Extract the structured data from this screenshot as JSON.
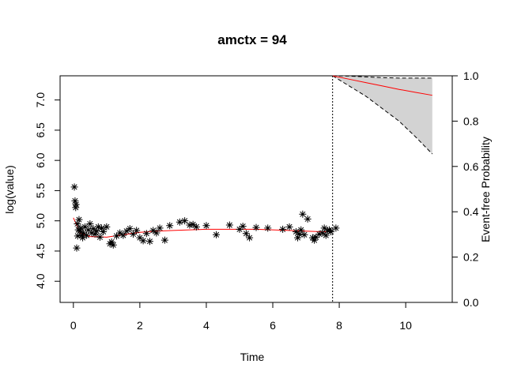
{
  "chart_data": {
    "type": "scatter",
    "title": "amctx = 94",
    "xlabel": "Time",
    "ylabel_left": "log(value)",
    "ylabel_right": "Event-free Probability",
    "xlim": [
      -0.4,
      11.4
    ],
    "ylim_left": [
      3.65,
      7.4
    ],
    "ylim_right": [
      0.0,
      1.0
    ],
    "x_ticks": [
      0,
      2,
      4,
      6,
      8,
      10
    ],
    "x_tick_labels": [
      "0",
      "2",
      "4",
      "6",
      "8",
      "10"
    ],
    "y_left_ticks": [
      4.0,
      4.5,
      5.0,
      5.5,
      6.0,
      6.5,
      7.0
    ],
    "y_left_tick_labels": [
      "4.0",
      "4.5",
      "5.0",
      "5.5",
      "6.0",
      "6.5",
      "7.0"
    ],
    "y_right_ticks": [
      0.0,
      0.2,
      0.4,
      0.6,
      0.8,
      1.0
    ],
    "y_right_tick_labels": [
      "0.0",
      "0.2",
      "0.4",
      "0.6",
      "0.8",
      "1.0"
    ],
    "vertical_line_x": 7.8,
    "colors": {
      "points": "#000000",
      "fitted": "#ff0000",
      "band": "#d3d3d3",
      "bounds": "#000000"
    },
    "observations": {
      "x": [
        0.03,
        0.05,
        0.07,
        0.08,
        0.1,
        0.12,
        0.13,
        0.15,
        0.17,
        0.2,
        0.22,
        0.25,
        0.28,
        0.3,
        0.35,
        0.4,
        0.45,
        0.5,
        0.55,
        0.6,
        0.65,
        0.7,
        0.75,
        0.8,
        0.85,
        0.9,
        1.0,
        1.1,
        1.15,
        1.2,
        1.3,
        1.4,
        1.5,
        1.6,
        1.7,
        1.8,
        1.9,
        2.0,
        2.1,
        2.2,
        2.3,
        2.4,
        2.5,
        2.6,
        2.75,
        2.9,
        3.2,
        3.35,
        3.5,
        3.6,
        3.7,
        4.0,
        4.3,
        4.7,
        5.0,
        5.1,
        5.2,
        5.3,
        5.5,
        5.85,
        6.3,
        6.5,
        6.7,
        6.75,
        6.8,
        6.85,
        6.9,
        6.95,
        7.05,
        7.2,
        7.25,
        7.3,
        7.4,
        7.5,
        7.55,
        7.6,
        7.65,
        7.7,
        7.75,
        7.9
      ],
      "y": [
        5.56,
        5.33,
        5.22,
        5.27,
        4.55,
        4.95,
        4.75,
        4.85,
        5.02,
        4.83,
        4.88,
        4.76,
        4.72,
        4.8,
        4.9,
        4.76,
        4.85,
        4.95,
        4.8,
        4.87,
        4.78,
        4.83,
        4.9,
        4.73,
        4.88,
        4.82,
        4.9,
        4.62,
        4.65,
        4.6,
        4.75,
        4.8,
        4.76,
        4.83,
        4.87,
        4.78,
        4.84,
        4.72,
        4.67,
        4.79,
        4.66,
        4.84,
        4.8,
        4.88,
        4.68,
        4.92,
        4.98,
        5.0,
        4.93,
        4.94,
        4.9,
        4.92,
        4.77,
        4.93,
        4.86,
        4.91,
        4.79,
        4.72,
        4.89,
        4.88,
        4.86,
        4.9,
        4.82,
        4.72,
        4.78,
        4.85,
        5.11,
        4.77,
        5.03,
        4.72,
        4.68,
        4.73,
        4.78,
        4.8,
        4.88,
        4.76,
        4.84,
        4.85,
        4.82,
        4.88
      ]
    },
    "fitted_longitudinal": {
      "x": [
        0.0,
        0.2,
        0.5,
        1.0,
        1.5,
        2.0,
        2.5,
        3.0,
        3.5,
        4.0,
        4.5,
        5.0,
        5.5,
        6.0,
        6.5,
        7.0,
        7.5,
        7.8
      ],
      "y": [
        5.05,
        4.8,
        4.74,
        4.73,
        4.77,
        4.81,
        4.83,
        4.84,
        4.85,
        4.86,
        4.86,
        4.86,
        4.86,
        4.85,
        4.84,
        4.83,
        4.82,
        4.82
      ]
    },
    "survival": {
      "x": [
        7.8,
        8.3,
        8.8,
        9.3,
        9.8,
        10.3,
        10.8
      ],
      "estimate": [
        1.0,
        0.985,
        0.97,
        0.955,
        0.94,
        0.927,
        0.914
      ],
      "lower": [
        1.0,
        0.955,
        0.91,
        0.855,
        0.8,
        0.73,
        0.655
      ],
      "upper": [
        1.0,
        0.999,
        0.995,
        0.992,
        0.99,
        0.99,
        0.99
      ]
    }
  }
}
